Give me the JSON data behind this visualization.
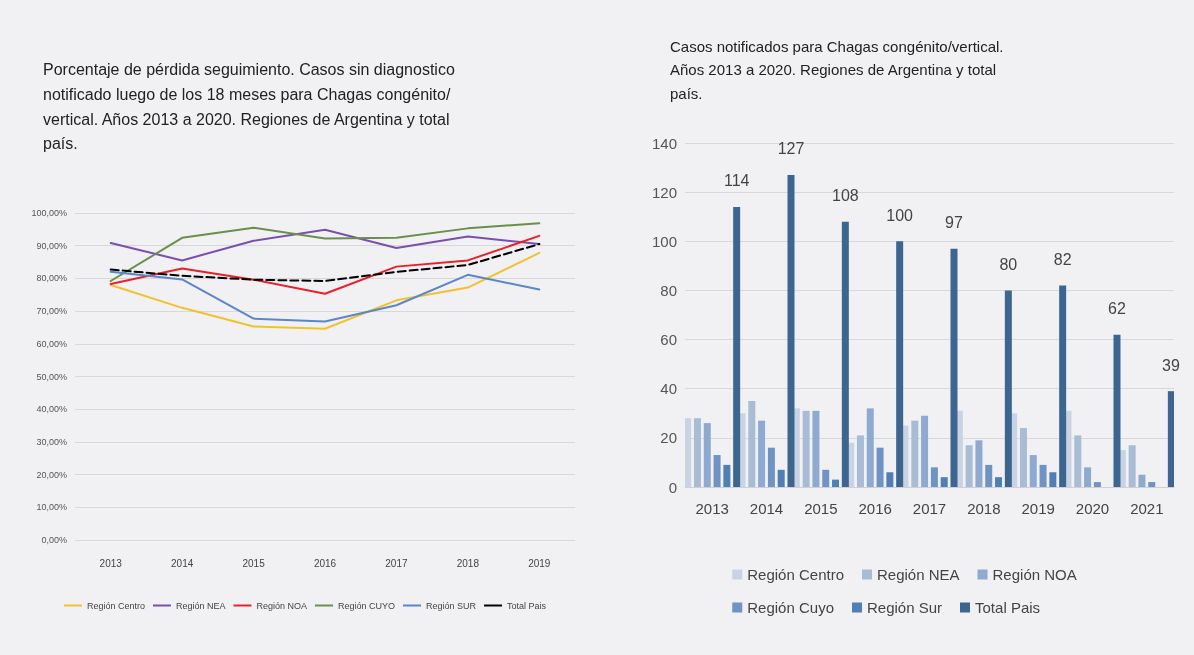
{
  "chart_data": [
    {
      "type": "line",
      "title": "Porcentaje de pérdida seguimiento. Casos sin diagnostico notificado luego de los 18 meses para Chagas congénito/vertical. Años 2013 a 2020. Regiones de Argentina y total país.",
      "categories": [
        "2013",
        "2014",
        "2015",
        "2016",
        "2017",
        "2018",
        "2019"
      ],
      "series": [
        {
          "name": "Región Centro",
          "color": "#f2c12e",
          "values": [
            78,
            71,
            65.3,
            64.6,
            73.3,
            77.2,
            87.8
          ]
        },
        {
          "name": "Región NEA",
          "color": "#7a4fb0",
          "values": [
            90.8,
            85.5,
            91.5,
            94.9,
            89.3,
            92.8,
            90.5
          ]
        },
        {
          "name": "Región NOA",
          "color": "#e8202a",
          "values": [
            78.3,
            83,
            79.6,
            75.3,
            83.6,
            85.5,
            93
          ]
        },
        {
          "name": "Región CUYO",
          "color": "#6a8f4a",
          "values": [
            79.2,
            92.4,
            95.5,
            92.2,
            92.4,
            95.3,
            96.9
          ]
        },
        {
          "name": "Región SUR",
          "color": "#5b86c8",
          "values": [
            82,
            79.7,
            67.7,
            66.8,
            71.8,
            81.1,
            76.6
          ]
        },
        {
          "name": "Total Pais",
          "color": "#000000",
          "line_style": "dashed",
          "values": [
            82.7,
            80.8,
            79.6,
            79.2,
            82,
            84.1,
            90.5
          ]
        }
      ],
      "ylim": [
        0,
        100
      ],
      "yticks": [
        {
          "value": 0,
          "label": "0,00%"
        },
        {
          "value": 10,
          "label": "10,00%"
        },
        {
          "value": 20,
          "label": "20,00%"
        },
        {
          "value": 30,
          "label": "30,00%"
        },
        {
          "value": 40,
          "label": "40,00%"
        },
        {
          "value": 50,
          "label": "50,00%"
        },
        {
          "value": 60,
          "label": "60,00%"
        },
        {
          "value": 70,
          "label": "70,00%"
        },
        {
          "value": 80,
          "label": "80,00%"
        },
        {
          "value": 90,
          "label": "90,00%"
        },
        {
          "value": 100,
          "label": "100,00%"
        }
      ],
      "grid": "y",
      "legend": "bottom",
      "marker": "none",
      "line_style": "solid"
    },
    {
      "type": "bar",
      "title": "Casos notificados para Chagas congénito/vertical. Años 2013 a 2020. Regiones de Argentina y total país.",
      "categories": [
        "2013",
        "2014",
        "2015",
        "2016",
        "2017",
        "2018",
        "2019",
        "2020",
        "2021"
      ],
      "series": [
        {
          "name": "Región Centro",
          "color": "#c9d3e3",
          "values": [
            28,
            30,
            32,
            18,
            25,
            31,
            30,
            31,
            15
          ]
        },
        {
          "name": "Región NEA",
          "color": "#a9bcd6",
          "values": [
            28,
            35,
            31,
            21,
            27,
            17,
            24,
            21,
            17
          ]
        },
        {
          "name": "Región NOA",
          "color": "#8eaad0",
          "values": [
            26,
            27,
            31,
            32,
            29,
            19,
            13,
            8,
            5
          ]
        },
        {
          "name": "Región Cuyo",
          "color": "#6f93c2",
          "values": [
            13,
            16,
            7,
            16,
            8,
            9,
            9,
            2,
            2
          ]
        },
        {
          "name": "Región Sur",
          "color": "#4f7fb5",
          "values": [
            9,
            7,
            3,
            6,
            4,
            4,
            6,
            0,
            0
          ]
        },
        {
          "name": "Total Pais",
          "color": "#3c6690",
          "values": [
            114,
            127,
            108,
            100,
            97,
            80,
            82,
            62,
            39
          ],
          "value_labels": [
            "114",
            "127",
            "108",
            "100",
            "97",
            "80",
            "82",
            "62",
            "39"
          ]
        }
      ],
      "ylim": [
        0,
        140
      ],
      "yticks": [
        0,
        20,
        40,
        60,
        80,
        100,
        120,
        140
      ],
      "grid": "y",
      "legend": "bottom"
    }
  ]
}
